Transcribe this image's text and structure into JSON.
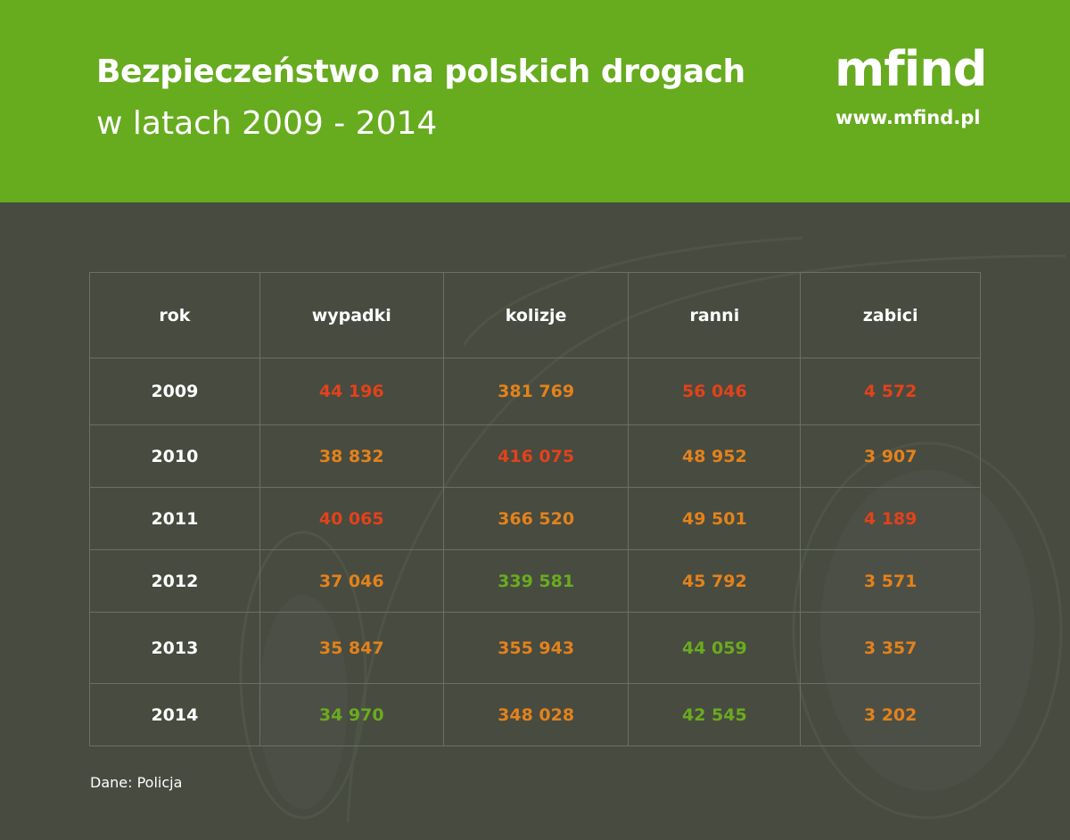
{
  "header": {
    "title": "Bezpieczeństwo na polskich drogach",
    "subtitle": "w latach 2009 - 2014",
    "logo": "mfind",
    "url": "www.mfind.pl"
  },
  "colors": {
    "header_bg": "#67ab1f",
    "page_bg": "#474b40",
    "worst": "#e2421b",
    "middle": "#e3821c",
    "best": "#6aab1f"
  },
  "chart_data": {
    "type": "table",
    "columns": [
      "rok",
      "wypadki",
      "kolizje",
      "ranni",
      "zabici"
    ],
    "rows": [
      {
        "rok": "2009",
        "cells": [
          {
            "v": "44 196",
            "c": "worst"
          },
          {
            "v": "381 769",
            "c": "middle"
          },
          {
            "v": "56 046",
            "c": "worst"
          },
          {
            "v": "4 572",
            "c": "worst"
          }
        ]
      },
      {
        "rok": "2010",
        "cells": [
          {
            "v": "38 832",
            "c": "middle"
          },
          {
            "v": "416 075",
            "c": "worst"
          },
          {
            "v": "48 952",
            "c": "middle"
          },
          {
            "v": "3 907",
            "c": "middle"
          }
        ]
      },
      {
        "rok": "2011",
        "cells": [
          {
            "v": "40 065",
            "c": "worst"
          },
          {
            "v": "366 520",
            "c": "middle"
          },
          {
            "v": "49 501",
            "c": "middle"
          },
          {
            "v": "4 189",
            "c": "worst"
          }
        ]
      },
      {
        "rok": "2012",
        "cells": [
          {
            "v": "37 046",
            "c": "middle"
          },
          {
            "v": "339 581",
            "c": "best"
          },
          {
            "v": "45 792",
            "c": "middle"
          },
          {
            "v": "3 571",
            "c": "middle"
          }
        ]
      },
      {
        "rok": "2013",
        "cells": [
          {
            "v": "35 847",
            "c": "middle"
          },
          {
            "v": "355 943",
            "c": "middle"
          },
          {
            "v": "44 059",
            "c": "best"
          },
          {
            "v": "3 357",
            "c": "middle"
          }
        ]
      },
      {
        "rok": "2014",
        "cells": [
          {
            "v": "34 970",
            "c": "best"
          },
          {
            "v": "348 028",
            "c": "middle"
          },
          {
            "v": "42 545",
            "c": "best"
          },
          {
            "v": "3 202",
            "c": "middle"
          }
        ]
      }
    ]
  },
  "source": "Dane: Policja"
}
